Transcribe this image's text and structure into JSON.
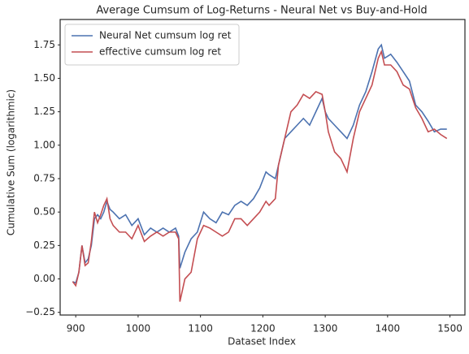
{
  "chart_data": {
    "type": "line",
    "title": "Average Cumsum of Log-Returns - Neural Net vs Buy-and-Hold",
    "xlabel": "Dataset Index",
    "ylabel": "Cumulative Sum (logarithmic)",
    "x": [
      895,
      900,
      905,
      910,
      915,
      920,
      925,
      930,
      935,
      940,
      945,
      950,
      955,
      960,
      970,
      980,
      990,
      1000,
      1010,
      1020,
      1030,
      1040,
      1050,
      1060,
      1065,
      1067,
      1075,
      1085,
      1095,
      1105,
      1115,
      1125,
      1135,
      1145,
      1155,
      1165,
      1175,
      1185,
      1195,
      1205,
      1210,
      1220,
      1225,
      1235,
      1245,
      1255,
      1265,
      1275,
      1285,
      1295,
      1300,
      1305,
      1315,
      1325,
      1335,
      1345,
      1355,
      1365,
      1375,
      1385,
      1390,
      1395,
      1405,
      1415,
      1425,
      1435,
      1445,
      1455,
      1465,
      1475,
      1485,
      1495
    ],
    "series": [
      {
        "name": "Neural Net cumsum log ret",
        "color": "#4c72b0",
        "values": [
          -0.02,
          -0.03,
          0.05,
          0.25,
          0.12,
          0.15,
          0.25,
          0.45,
          0.48,
          0.45,
          0.5,
          0.58,
          0.52,
          0.5,
          0.45,
          0.48,
          0.4,
          0.45,
          0.33,
          0.38,
          0.35,
          0.38,
          0.35,
          0.38,
          0.32,
          0.08,
          0.2,
          0.3,
          0.35,
          0.5,
          0.45,
          0.42,
          0.5,
          0.48,
          0.55,
          0.58,
          0.55,
          0.6,
          0.68,
          0.8,
          0.78,
          0.75,
          0.85,
          1.05,
          1.1,
          1.15,
          1.2,
          1.15,
          1.25,
          1.35,
          1.25,
          1.2,
          1.15,
          1.1,
          1.05,
          1.15,
          1.3,
          1.4,
          1.55,
          1.72,
          1.75,
          1.65,
          1.68,
          1.62,
          1.55,
          1.48,
          1.3,
          1.25,
          1.18,
          1.1,
          1.12,
          1.12
        ]
      },
      {
        "name": "effective cumsum log ret",
        "color": "#c44e52",
        "values": [
          -0.02,
          -0.05,
          0.05,
          0.25,
          0.1,
          0.12,
          0.28,
          0.5,
          0.42,
          0.48,
          0.55,
          0.6,
          0.45,
          0.4,
          0.35,
          0.35,
          0.3,
          0.4,
          0.28,
          0.32,
          0.35,
          0.32,
          0.35,
          0.35,
          0.3,
          -0.17,
          0.0,
          0.05,
          0.3,
          0.4,
          0.38,
          0.35,
          0.32,
          0.35,
          0.45,
          0.45,
          0.4,
          0.45,
          0.5,
          0.58,
          0.55,
          0.6,
          0.85,
          1.05,
          1.25,
          1.3,
          1.38,
          1.35,
          1.4,
          1.38,
          1.25,
          1.1,
          0.95,
          0.9,
          0.8,
          1.05,
          1.25,
          1.35,
          1.45,
          1.65,
          1.7,
          1.6,
          1.6,
          1.55,
          1.45,
          1.42,
          1.28,
          1.2,
          1.1,
          1.12,
          1.08,
          1.05
        ]
      }
    ],
    "xlim": [
      875,
      1524
    ],
    "ylim": [
      -0.27,
      1.94
    ],
    "xticks": [
      900,
      1000,
      1100,
      1200,
      1300,
      1400,
      1500
    ],
    "yticks": [
      {
        "value": -0.25,
        "label": "−0.25"
      },
      {
        "value": 0,
        "label": "0.00"
      },
      {
        "value": 0.25,
        "label": "0.25"
      },
      {
        "value": 0.5,
        "label": "0.50"
      },
      {
        "value": 0.75,
        "label": "0.75"
      },
      {
        "value": 1,
        "label": "1.00"
      },
      {
        "value": 1.25,
        "label": "1.25"
      },
      {
        "value": 1.5,
        "label": "1.50"
      },
      {
        "value": 1.75,
        "label": "1.75"
      }
    ],
    "grid": false,
    "legend": "upper left"
  }
}
